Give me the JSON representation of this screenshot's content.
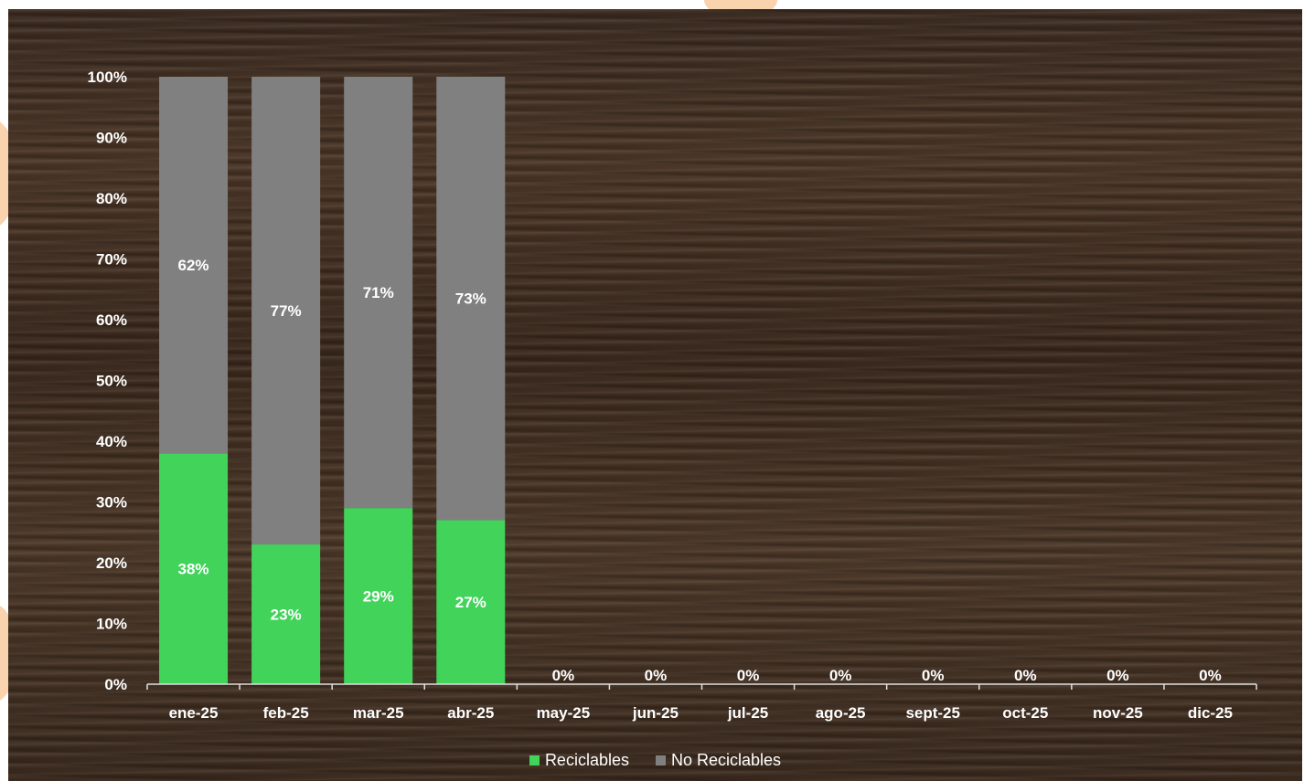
{
  "chart_data": {
    "type": "bar",
    "stacked": true,
    "categories": [
      "ene-25",
      "feb-25",
      "mar-25",
      "abr-25",
      "may-25",
      "jun-25",
      "jul-25",
      "ago-25",
      "sept-25",
      "oct-25",
      "nov-25",
      "dic-25"
    ],
    "series": [
      {
        "name": "Reciclables",
        "color": "#42d35a",
        "values": [
          38,
          23,
          29,
          27,
          0,
          0,
          0,
          0,
          0,
          0,
          0,
          0
        ]
      },
      {
        "name": "No Reciclables",
        "color": "#808080",
        "values": [
          62,
          77,
          71,
          73,
          0,
          0,
          0,
          0,
          0,
          0,
          0,
          0
        ]
      }
    ],
    "data_labels": {
      "Reciclables": [
        "38%",
        "23%",
        "29%",
        "27%",
        "0%",
        "0%",
        "0%",
        "0%",
        "0%",
        "0%",
        "0%",
        "0%"
      ],
      "No Reciclables": [
        "62%",
        "77%",
        "71%",
        "73%",
        "",
        "",
        "",
        "",
        "",
        "",
        "",
        ""
      ]
    },
    "y_ticks": [
      "0%",
      "10%",
      "20%",
      "30%",
      "40%",
      "50%",
      "60%",
      "70%",
      "80%",
      "90%",
      "100%"
    ],
    "ylim": [
      0,
      100
    ],
    "grid": false,
    "legend": "bottom"
  }
}
